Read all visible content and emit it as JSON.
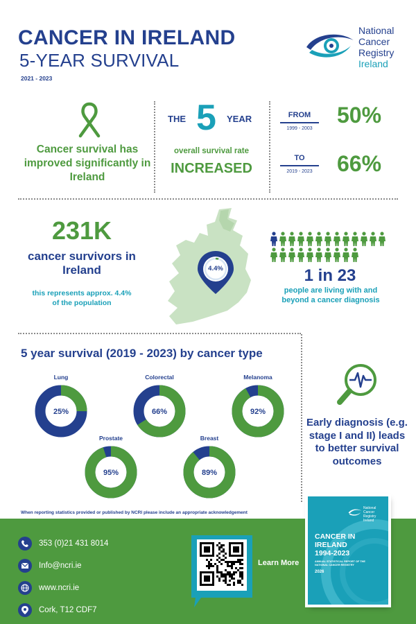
{
  "header": {
    "title": "CANCER IN IRELAND",
    "subtitle": "5-YEAR SURVIVAL",
    "period": "2021 - 2023",
    "logo_line1": "National",
    "logo_line2": "Cancer",
    "logo_line3": "Registry",
    "logo_line4": "Ireland"
  },
  "section1": {
    "ribbon_icon": "awareness-ribbon-icon",
    "improved_text": "Cancer survival has improved significantly in Ireland",
    "the_label": "THE",
    "five_number": "5",
    "year_label": "YEAR",
    "overall_label": "overall survival rate",
    "increased_label": "INCREASED",
    "from_label": "FROM",
    "from_period": "1999 - 2003",
    "from_value": "50%",
    "to_label": "TO",
    "to_period": "2019 - 2023",
    "to_value": "66%"
  },
  "section2": {
    "survivors_number": "231K",
    "survivors_label": "cancer survivors in Ireland",
    "represents_text": "this represents approx. 4.4% of the population",
    "map_pin_value": "4.4%",
    "map_pin_fraction": 0.044,
    "ratio_text": "1 in 23",
    "ratio_desc": "people are living with and beyond a cancer diagnosis",
    "people_count": 23,
    "highlighted_person_index": 0
  },
  "section3": {
    "title": "5 year survival (2019 - 2023) by cancer type",
    "donut_colors": {
      "survival": "#4e9a3f",
      "remainder": "#24408e"
    },
    "cancer_types": [
      {
        "name": "Lung",
        "value": 25,
        "label": "25%"
      },
      {
        "name": "Colorectal",
        "value": 66,
        "label": "66%"
      },
      {
        "name": "Melanoma",
        "value": 92,
        "label": "92%"
      },
      {
        "name": "Prostate",
        "value": 95,
        "label": "95%"
      },
      {
        "name": "Breast",
        "value": 89,
        "label": "89%"
      }
    ],
    "early_diagnosis_text": "Early diagnosis (e.g. stage I and II) leads to better survival outcomes",
    "magnifier_icon": "magnifier-heartbeat-icon"
  },
  "acknowledgement": "When reporting statistics provided or published by NCRI please include an appropriate acknowledgement",
  "footer": {
    "phone": "353 (0)21 431 8014",
    "email": "Info@ncri.ie",
    "website": "www.ncri.ie",
    "address": "Cork, T12 CDF7",
    "learn_more": "Learn More",
    "report_cover": {
      "logo_line1": "National",
      "logo_line2": "Cancer",
      "logo_line3": "Registry",
      "logo_line4": "Ireland",
      "title_line1": "CANCER IN",
      "title_line2": "IRELAND",
      "title_line3": "1994-2023",
      "subtitle": "ANNUAL STATISTICAL REPORT OF THE NATIONAL CANCER REGISTRY",
      "year": "2026"
    }
  },
  "colors": {
    "navy": "#24408e",
    "green": "#4e9a3f",
    "teal": "#1aa0b8",
    "footer_green": "#4e9a3f"
  }
}
